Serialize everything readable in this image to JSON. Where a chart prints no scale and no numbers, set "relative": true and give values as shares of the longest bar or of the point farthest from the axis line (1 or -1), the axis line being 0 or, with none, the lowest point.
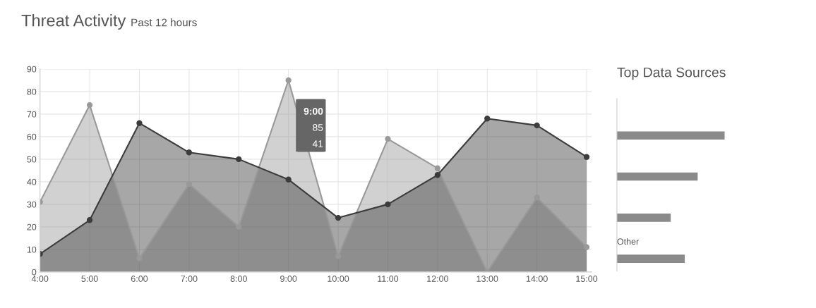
{
  "chart_data": [
    {
      "type": "area",
      "title": "Threat Activity",
      "subtitle": "Past 12 hours",
      "categories": [
        "4:00",
        "5:00",
        "6:00",
        "7:00",
        "8:00",
        "9:00",
        "10:00",
        "11:00",
        "12:00",
        "13:00",
        "14:00",
        "15:00"
      ],
      "series": [
        {
          "color": "#999999",
          "values": [
            31,
            74,
            6,
            39,
            20,
            85,
            7,
            59,
            46,
            0,
            33,
            11
          ]
        },
        {
          "color": "#3c3c3c",
          "values": [
            8,
            23,
            66,
            53,
            50,
            41,
            24,
            30,
            43,
            68,
            65,
            51
          ]
        }
      ],
      "ylim": [
        0,
        90
      ],
      "yticks": [
        0,
        10,
        20,
        30,
        40,
        50,
        60,
        70,
        80,
        90
      ],
      "grid": true,
      "marker": "circle",
      "line_style": "solid",
      "annotations": [
        "9:00",
        "85",
        "41"
      ]
    },
    {
      "type": "bar",
      "orientation": "horizontal",
      "relative": true,
      "title": "Top Data Sources",
      "categories": [
        null,
        null,
        null,
        "Other"
      ],
      "values": [
        1,
        0.75,
        0.5,
        0.63
      ],
      "color": "#8a8a8a"
    }
  ]
}
